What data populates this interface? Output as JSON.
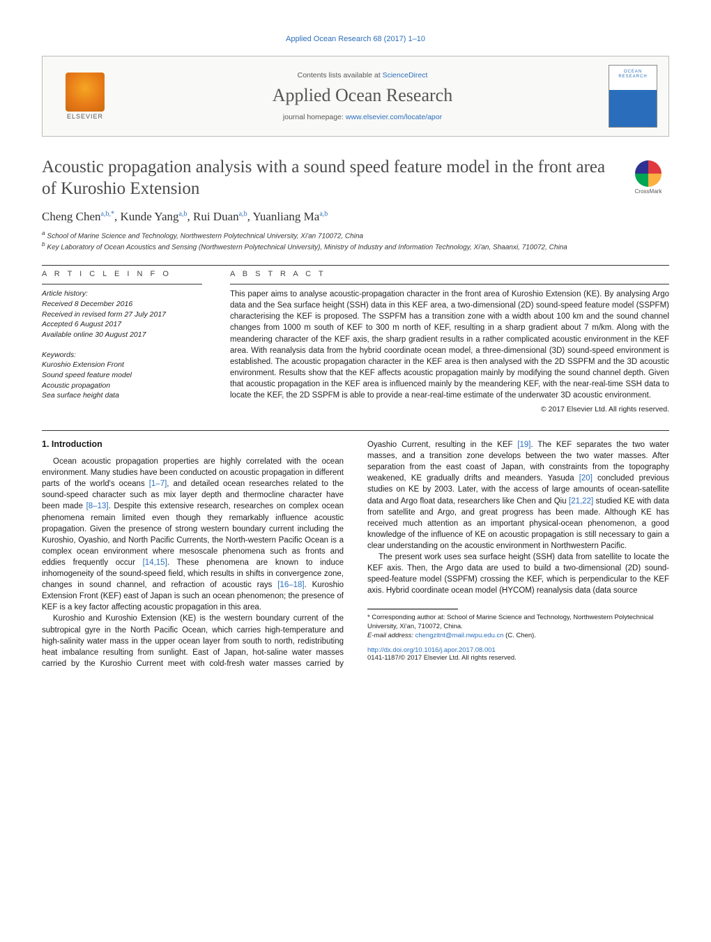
{
  "header": {
    "journal_issue": "Applied Ocean Research 68 (2017) 1–10",
    "contents_prefix": "Contents lists available at ",
    "contents_link": "ScienceDirect",
    "journal_name": "Applied Ocean Research",
    "homepage_prefix": "journal homepage: ",
    "homepage_link": "www.elsevier.com/locate/apor",
    "publisher": "ELSEVIER",
    "cover_text": "OCEAN\nRESEARCH",
    "crossmark": "CrossMark",
    "colors": {
      "link": "#2a6ebb",
      "elsevier_orange": "#e67817",
      "text": "#1a1a1a"
    }
  },
  "title": "Acoustic propagation analysis with a sound speed feature model in the front area of Kuroshio Extension",
  "authors_html": "Cheng Chen<sup>a,b,*</sup>, Kunde Yang<sup>a,b</sup>, Rui Duan<sup>a,b</sup>, Yuanliang Ma<sup>a,b</sup>",
  "affiliations": [
    "a School of Marine Science and Technology, Northwestern Polytechnical University, Xi'an 710072, China",
    "b Key Laboratory of Ocean Acoustics and Sensing (Northwestern Polytechnical University), Ministry of Industry and Information Technology, Xi'an, Shaanxi, 710072, China"
  ],
  "article_info": {
    "heading": "a r t i c l e   i n f o",
    "history_label": "Article history:",
    "history": [
      "Received 8 December 2016",
      "Received in revised form 27 July 2017",
      "Accepted 6 August 2017",
      "Available online 30 August 2017"
    ],
    "keywords_label": "Keywords:",
    "keywords": [
      "Kuroshio Extension Front",
      "Sound speed feature model",
      "Acoustic propagation",
      "Sea surface height data"
    ]
  },
  "abstract": {
    "heading": "a b s t r a c t",
    "text": "This paper aims to analyse acoustic-propagation character in the front area of Kuroshio Extension (KE). By analysing Argo data and the Sea surface height (SSH) data in this KEF area, a two-dimensional (2D) sound-speed feature model (SSPFM) characterising the KEF is proposed. The SSPFM has a transition zone with a width about 100 km and the sound channel changes from 1000 m south of KEF to 300 m north of KEF, resulting in a sharp gradient about 7 m/km. Along with the meandering character of the KEF axis, the sharp gradient results in a rather complicated acoustic environment in the KEF area. With reanalysis data from the hybrid coordinate ocean model, a three-dimensional (3D) sound-speed environment is established. The acoustic propagation character in the KEF area is then analysed with the 2D SSPFM and the 3D acoustic environment. Results show that the KEF affects acoustic propagation mainly by modifying the sound channel depth. Given that acoustic propagation in the KEF area is influenced mainly by the meandering KEF, with the near-real-time SSH data to locate the KEF, the 2D SSPFM is able to provide a near-real-time estimate of the underwater 3D acoustic environment.",
    "copyright": "© 2017 Elsevier Ltd. All rights reserved."
  },
  "body": {
    "section_heading": "1. Introduction",
    "para1": "Ocean acoustic propagation properties are highly correlated with the ocean environment. Many studies have been conducted on acoustic propagation in different parts of the world's oceans [1–7], and detailed ocean researches related to the sound-speed character such as mix layer depth and thermocline character have been made [8–13]. Despite this extensive research, researches on complex ocean phenomena remain limited even though they remarkably influence acoustic propagation. Given the presence of strong western boundary current including the Kuroshio, Oyashio, and North Pacific Currents, the North-western Pacific Ocean is a complex ocean environment where mesoscale phenomena such as fronts and eddies frequently occur [14,15]. These phenomena are known to induce inhomogeneity of the sound-speed field, which results in shifts in convergence zone, changes in sound channel, and refraction of acoustic rays [16–18]. Kuroshio Extension Front (KEF) east of Japan is such an ocean phenomenon; the presence of KEF is a key factor affecting acoustic propagation in this area.",
    "para2": "Kuroshio and Kuroshio Extension (KE) is the western boundary current of the subtropical gyre in the North Pacific Ocean, which carries high-temperature and high-salinity water mass in the upper ocean layer from south to north, redistributing heat imbalance resulting from sunlight. East of Japan, hot-saline water masses carried by the Kuroshio Current meet with cold-fresh water masses carried by Oyashio Current, resulting in the KEF [19]. The KEF separates the two water masses, and a transition zone develops between the two water masses. After separation from the east coast of Japan, with constraints from the topography weakened, KE gradually drifts and meanders. Yasuda [20] concluded previous studies on KE by 2003. Later, with the access of large amounts of ocean-satellite data and Argo float data, researchers like Chen and Qiu [21,22] studied KE with data from satellite and Argo, and great progress has been made. Although KE has received much attention as an important physical-ocean phenomenon, a good knowledge of the influence of KE on acoustic propagation is still necessary to gain a clear understanding on the acoustic environment in Northwestern Pacific.",
    "para3": "The present work uses sea surface height (SSH) data from satellite to locate the KEF axis. Then, the Argo data are used to build a two-dimensional (2D) sound-speed-feature model (SSPFM) crossing the KEF, which is perpendicular to the KEF axis. Hybrid coordinate ocean model (HYCOM) reanalysis data (data source",
    "refs": {
      "r1": "[1–7]",
      "r2": "[8–13]",
      "r3": "[14,15]",
      "r4": "[16–18]",
      "r5": "[19]",
      "r6": "[20]",
      "r7": "[21,22]"
    }
  },
  "footnote": {
    "corr": "* Corresponding author at: School of Marine Science and Technology, Northwestern Polytechnical University, Xi'an, 710072, China.",
    "email_label": "E-mail address: ",
    "email": "chengzitnt@mail.nwpu.edu.cn",
    "email_suffix": " (C. Chen)."
  },
  "doi": {
    "link": "http://dx.doi.org/10.1016/j.apor.2017.08.001",
    "issn": "0141-1187/© 2017 Elsevier Ltd. All rights reserved."
  }
}
